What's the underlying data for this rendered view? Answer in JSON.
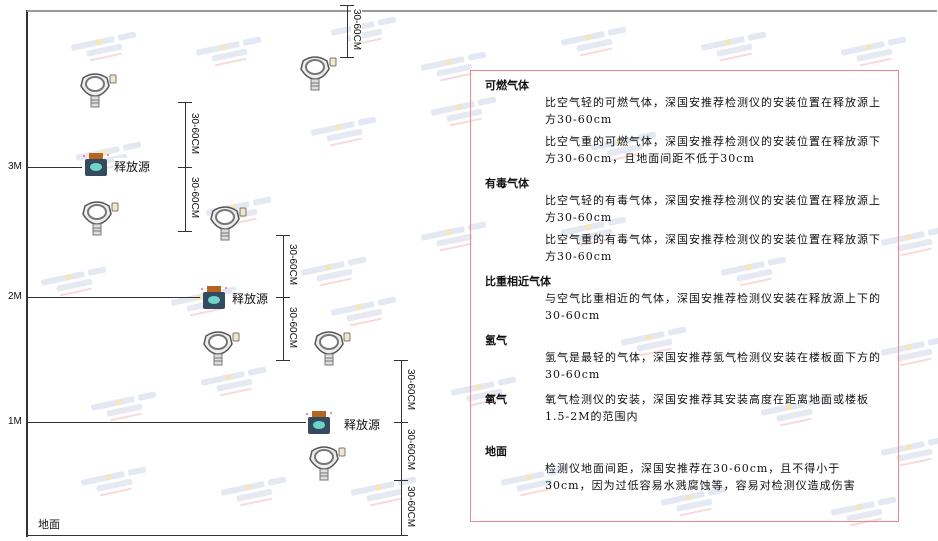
{
  "watermark": {
    "brand": "SINGOAN",
    "cn": "深国安"
  },
  "levels": [
    "3M",
    "2M",
    "1M"
  ],
  "ground_label": "地面",
  "source_label": "释放源",
  "dimension_label": "30-60CM",
  "panel": {
    "sections": [
      {
        "title": "可燃气体",
        "paragraphs": [
          "比空气轻的可燃气体，深国安推荐检测仪的安装位置在释放源上方30-60cm",
          "比空气重的可燃气体，深国安推荐检测仪的安装位置在释放源下方30-60cm，且地面间距不低于30cm"
        ]
      },
      {
        "title": "有毒气体",
        "paragraphs": [
          "比空气轻的有毒气体，深国安推荐检测仪的安装位置在释放源上方30-60cm",
          "比空气重的有毒气体，深国安推荐检测仪的安装位置在释放源下方30-60cm"
        ]
      },
      {
        "title": "比重相近气体",
        "paragraphs": [
          "与空气比重相近的气体，深国安推荐检测仪安装在释放源上下的30-60cm"
        ]
      },
      {
        "title": "氢气",
        "paragraphs": [
          "氢气是最轻的气体，深国安推荐氢气检测仪安装在楼板面下方的30-60cm"
        ]
      },
      {
        "title": "氧气",
        "paragraphs": [
          "氧气检测仪的安装，深国安推荐其安装高度在距离地面或楼板1.5-2M的范围内"
        ]
      },
      {
        "title": "地面",
        "paragraphs": [
          "检测仪地面间距，深国安推荐在30-60cm，且不得小于30cm，因为过低容易水溅腐蚀等，容易对检测仪造成伤害"
        ]
      }
    ]
  }
}
